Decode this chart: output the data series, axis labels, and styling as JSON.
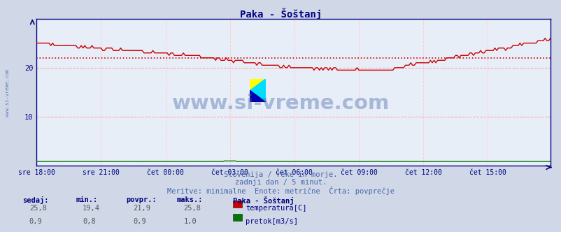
{
  "title": "Paka - Šoštanj",
  "title_color": "#000080",
  "bg_color": "#d0d8e8",
  "plot_bg_color": "#e8eef8",
  "grid_color_h": "#ff9999",
  "grid_color_v": "#ffcccc",
  "x_labels": [
    "sre 18:00",
    "sre 21:00",
    "čet 00:00",
    "čet 03:00",
    "čet 06:00",
    "čet 09:00",
    "čet 12:00",
    "čet 15:00"
  ],
  "x_ticks": [
    0,
    36,
    72,
    108,
    144,
    180,
    216,
    252
  ],
  "total_points": 288,
  "y_min": 0,
  "y_max": 30,
  "y_ticks": [
    10,
    20
  ],
  "avg_line_value": 21.9,
  "avg_line_color": "#cc0000",
  "temp_color": "#cc0000",
  "flow_color": "#007700",
  "watermark": "www.si-vreme.com",
  "watermark_color": "#4466aa",
  "watermark_alpha": 0.4,
  "subtitle1": "Slovenija / reke in morje.",
  "subtitle2": "zadnji dan / 5 minut.",
  "subtitle3": "Meritve: minimalne  Enote: metrične  Črta: povprečje",
  "subtitle_color": "#4466aa",
  "left_label": "www.si-vreme.com",
  "left_label_color": "#4466aa",
  "axis_color": "#000080",
  "tick_label_color": "#000080",
  "table_header_color": "#000080",
  "table_value_color": "#555555",
  "sedaj_t": "25,8",
  "min_t": "19,4",
  "povpr_t": "21,9",
  "maks_t": "25,8",
  "sedaj_f": "0,9",
  "min_f": "0,8",
  "povpr_f": "0,9",
  "maks_f": "1,0",
  "legend_title": "Paka - Šoštanj",
  "legend_temp": "temperatura[C]",
  "legend_flow": "pretok[m3/s]"
}
